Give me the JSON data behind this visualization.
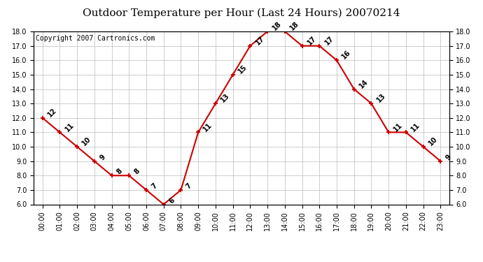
{
  "title": "Outdoor Temperature per Hour (Last 24 Hours) 20070214",
  "copyright": "Copyright 2007 Cartronics.com",
  "hours": [
    "00:00",
    "01:00",
    "02:00",
    "03:00",
    "04:00",
    "05:00",
    "06:00",
    "07:00",
    "08:00",
    "09:00",
    "10:00",
    "11:00",
    "12:00",
    "13:00",
    "14:00",
    "15:00",
    "16:00",
    "17:00",
    "18:00",
    "19:00",
    "20:00",
    "21:00",
    "22:00",
    "23:00"
  ],
  "temps": [
    12,
    11,
    10,
    9,
    8,
    8,
    7,
    6,
    7,
    11,
    13,
    15,
    17,
    18,
    18,
    17,
    17,
    16,
    14,
    13,
    11,
    11,
    10,
    9
  ],
  "ylim_min": 6.0,
  "ylim_max": 18.0,
  "yticks": [
    6.0,
    7.0,
    8.0,
    9.0,
    10.0,
    11.0,
    12.0,
    13.0,
    14.0,
    15.0,
    16.0,
    17.0,
    18.0
  ],
  "line_color": "#cc0000",
  "bg_color": "#ffffff",
  "grid_color": "#bbbbbb",
  "title_fontsize": 11,
  "label_fontsize": 7,
  "tick_fontsize": 7,
  "copyright_fontsize": 7
}
